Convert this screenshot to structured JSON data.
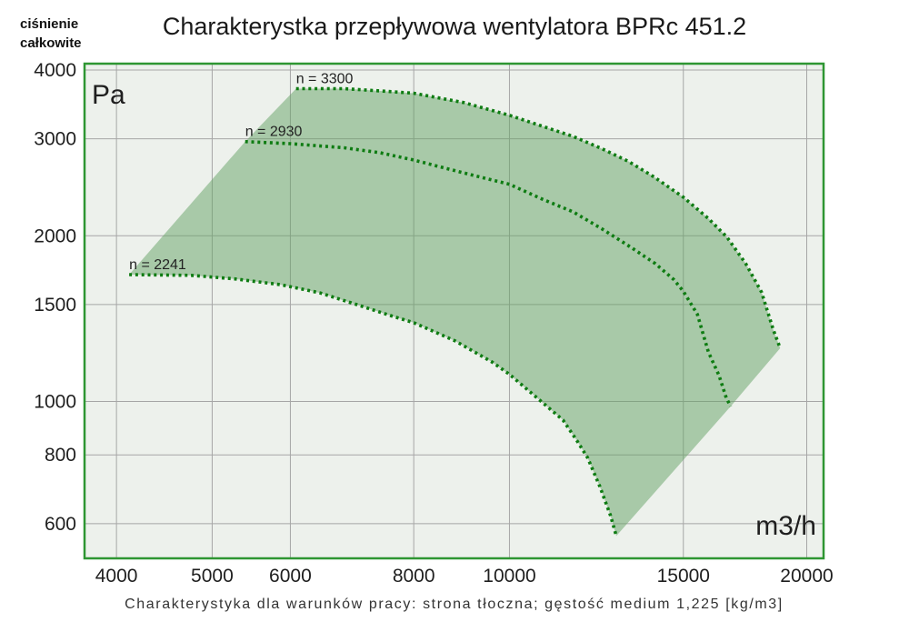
{
  "title": "Charakterystka przepływowa wentylatora BPRc 451.2",
  "y_axis_title": {
    "line1": "ciśnienie",
    "line2": "całkowite"
  },
  "y_unit": "Pa",
  "x_unit": "m3/h",
  "caption": "Charakterystyka dla warunków pracy: strona tłoczna; gęstość medium 1,225 [kg/m3]",
  "chart_data": {
    "type": "area",
    "title": "Charakterystka przepływowa wentylatora BPRc 451.2",
    "xlabel": "m3/h",
    "ylabel": "ciśnienie całkowite [Pa]",
    "x_scale": "log",
    "y_scale": "log",
    "x_ticks": [
      4000,
      5000,
      6000,
      8000,
      10000,
      15000,
      20000
    ],
    "y_ticks": [
      600,
      800,
      1000,
      1500,
      2000,
      3000,
      4000
    ],
    "xlim": [
      3713,
      20800
    ],
    "ylim": [
      519,
      4108
    ],
    "grid": true,
    "legend_position": "labels-on-curves",
    "series": [
      {
        "name": "n = 3300",
        "points": [
          [
            6080,
            3700
          ],
          [
            6800,
            3700
          ],
          [
            7500,
            3660
          ],
          [
            8000,
            3630
          ],
          [
            9000,
            3490
          ],
          [
            10000,
            3310
          ],
          [
            11600,
            3030
          ],
          [
            12400,
            2880
          ],
          [
            13200,
            2730
          ],
          [
            14000,
            2560
          ],
          [
            15000,
            2350
          ],
          [
            15900,
            2150
          ],
          [
            16600,
            1990
          ],
          [
            17350,
            1780
          ],
          [
            18000,
            1580
          ],
          [
            18500,
            1350
          ],
          [
            18800,
            1250
          ]
        ]
      },
      {
        "name": "n = 2930",
        "points": [
          [
            5400,
            2965
          ],
          [
            6000,
            2940
          ],
          [
            6800,
            2890
          ],
          [
            7400,
            2830
          ],
          [
            8000,
            2745
          ],
          [
            9000,
            2600
          ],
          [
            10000,
            2480
          ],
          [
            10800,
            2330
          ],
          [
            11600,
            2210
          ],
          [
            12400,
            2060
          ],
          [
            13280,
            1905
          ],
          [
            14050,
            1780
          ],
          [
            14670,
            1665
          ],
          [
            15000,
            1585
          ],
          [
            15500,
            1440
          ],
          [
            15900,
            1230
          ],
          [
            16300,
            1115
          ],
          [
            16580,
            1015
          ],
          [
            16750,
            980
          ]
        ]
      },
      {
        "name": "n = 2241",
        "points": [
          [
            4120,
            1700
          ],
          [
            4760,
            1695
          ],
          [
            5270,
            1670
          ],
          [
            5870,
            1630
          ],
          [
            6430,
            1575
          ],
          [
            7000,
            1500
          ],
          [
            7600,
            1430
          ],
          [
            8000,
            1390
          ],
          [
            8800,
            1290
          ],
          [
            9600,
            1180
          ],
          [
            10000,
            1120
          ],
          [
            10700,
            1010
          ],
          [
            11330,
            925
          ],
          [
            11700,
            850
          ],
          [
            12000,
            790
          ],
          [
            12350,
            700
          ],
          [
            12660,
            620
          ],
          [
            12830,
            570
          ]
        ]
      }
    ],
    "envelope": "filled operating area bounded left by curve start points, top by n = 3300, right by curve end points, bottom by n = 2241",
    "colors": {
      "plot_background": "#edf1ec",
      "plot_border": "#2e9632",
      "grid": "#a6a6a6",
      "envelope_fill": "rgba(99,161,100,0.5)",
      "curve_dots": "#0e7c12",
      "text": "#1f1f1f"
    }
  }
}
